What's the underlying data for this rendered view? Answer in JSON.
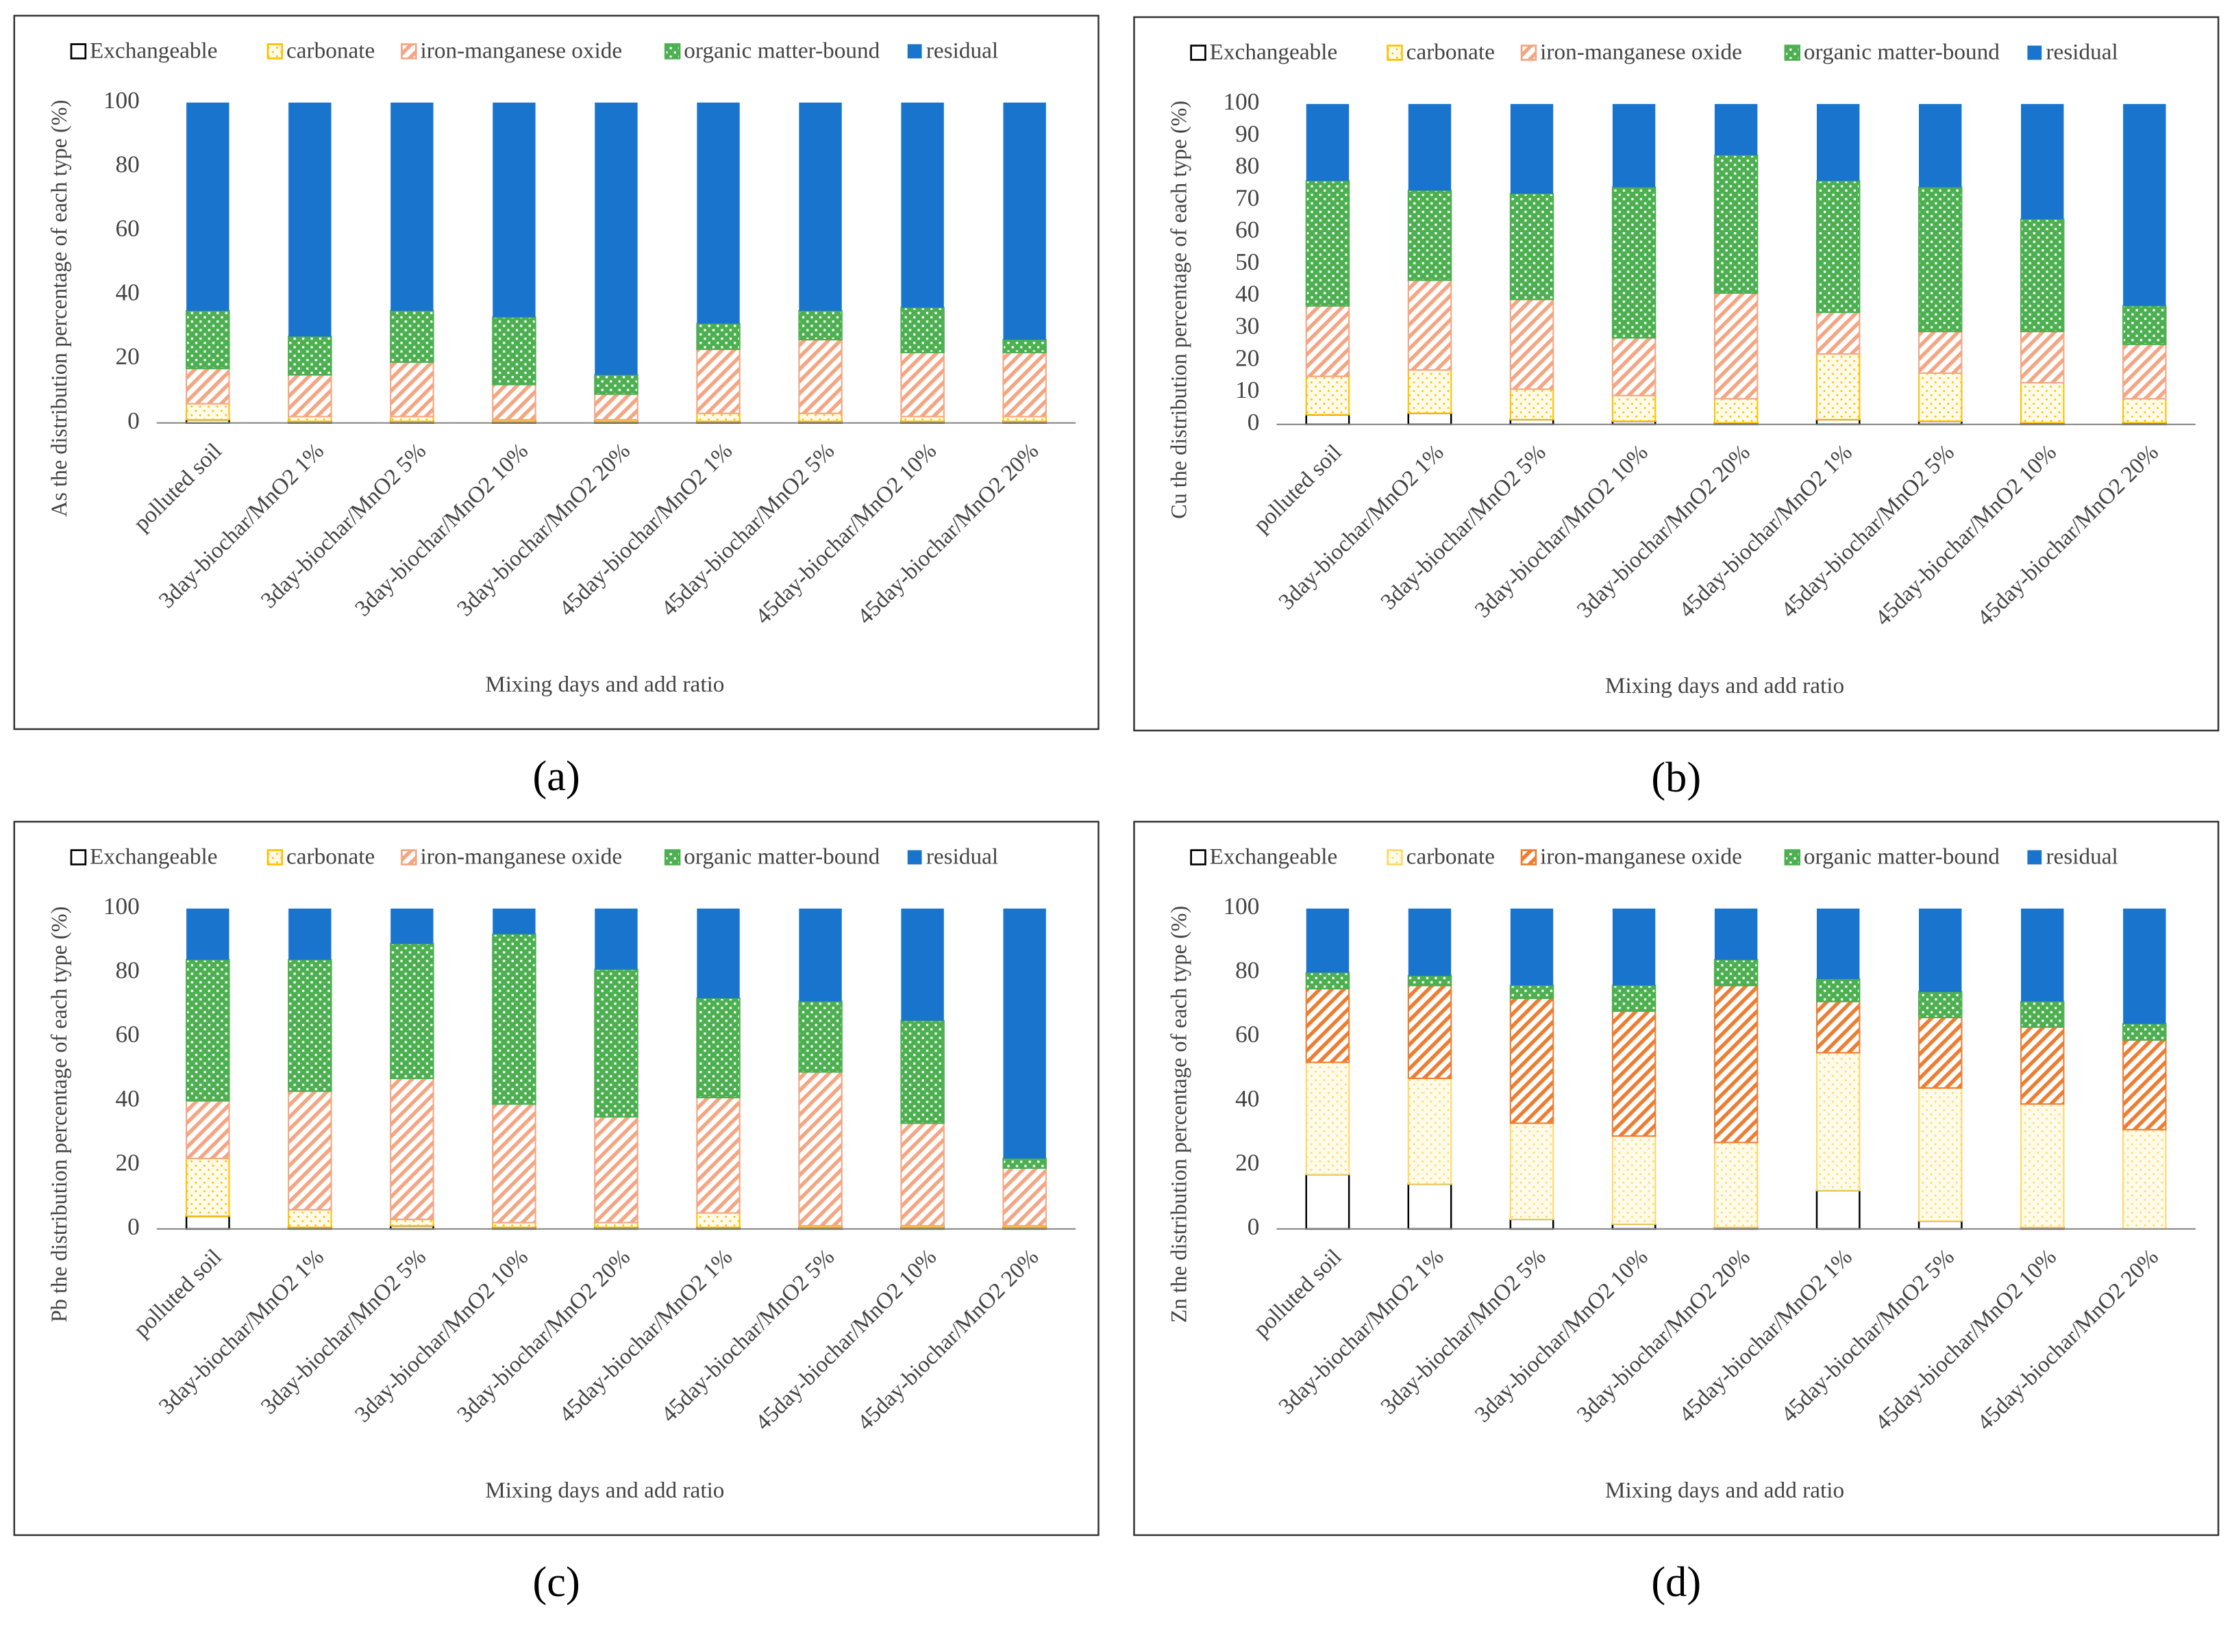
{
  "chart_data": [
    {
      "type": "bar",
      "stacked": true,
      "panel_label": "(a)",
      "ylabel": "As the distribution percentage of each type (%)",
      "xlabel": "Mixing days and add ratio",
      "categories": [
        "polluted soil",
        "3day-biochar/MnO2  1%",
        "3day-biochar/MnO2  5%",
        "3day-biochar/MnO2  10%",
        "3day-biochar/MnO2 20%",
        "45day-biochar/MnO2 1%",
        "45day-biochar/MnO2  5%",
        "45day-biochar/MnO2  10%",
        "45day-biochar/MnO2  20%"
      ],
      "ylim": [
        0,
        100
      ],
      "yticks": [
        0,
        20,
        40,
        60,
        80,
        100
      ],
      "grid": false,
      "series": [
        {
          "name": "Exchangeable",
          "color": "#000000",
          "values": [
            1,
            0.5,
            0.5,
            0.5,
            0.5,
            0.5,
            0.5,
            0.5,
            0.5
          ]
        },
        {
          "name": "carbonate",
          "color": "#ffc000",
          "values": [
            5,
            1.5,
            1.5,
            0.5,
            0.5,
            2.5,
            2.5,
            1.5,
            1.5
          ]
        },
        {
          "name": "iron-manganese oxide",
          "color": "#f4a582",
          "values": [
            11,
            13,
            17,
            11,
            8,
            20,
            23,
            20,
            20
          ]
        },
        {
          "name": "organic matter-bound",
          "color": "#4caf50",
          "values": [
            18,
            12,
            16,
            21,
            6,
            8,
            9,
            14,
            4
          ]
        },
        {
          "name": "residual",
          "color": "#1874cd",
          "values": [
            65,
            73,
            65,
            67,
            85,
            69,
            65,
            64,
            74
          ]
        }
      ]
    },
    {
      "type": "bar",
      "stacked": true,
      "panel_label": "(b)",
      "ylabel": "Cu the distribution percentage of each type (%)",
      "xlabel": "Mixing days and add ratio",
      "categories": [
        "polluted soil",
        "3day-biochar/MnO2  1%",
        "3day-biochar/MnO2  5%",
        "3day-biochar/MnO2  10%",
        "3day-biochar/MnO2  20%",
        "45day-biochar/MnO2  1%",
        "45day-biochar/MnO2  5%",
        "45day-biochar/MnO2  10%",
        "45day-biochar/MnO2  20%"
      ],
      "ylim": [
        0,
        100
      ],
      "yticks": [
        0,
        10,
        20,
        30,
        40,
        50,
        60,
        70,
        80,
        90,
        100
      ],
      "grid": false,
      "series": [
        {
          "name": "Exchangeable",
          "color": "#000000",
          "values": [
            3,
            3.5,
            1.5,
            1,
            0.5,
            1.5,
            1,
            0.5,
            0.5
          ]
        },
        {
          "name": "carbonate",
          "color": "#ffc000",
          "values": [
            12,
            13.5,
            9.5,
            8,
            7.5,
            20.5,
            15,
            12.5,
            7.5
          ]
        },
        {
          "name": "iron-manganese oxide",
          "color": "#f4a582",
          "values": [
            22,
            28,
            28,
            18,
            33,
            13,
            13,
            16,
            17
          ]
        },
        {
          "name": "organic matter-bound",
          "color": "#4caf50",
          "values": [
            39,
            28,
            33,
            47,
            43,
            41,
            45,
            35,
            12
          ]
        },
        {
          "name": "residual",
          "color": "#1874cd",
          "values": [
            24,
            27,
            28,
            26,
            16,
            24,
            26,
            36,
            63
          ]
        }
      ]
    },
    {
      "type": "bar",
      "stacked": true,
      "panel_label": "(c)",
      "ylabel": "Pb the distribution percentage of each type (%)",
      "xlabel": "Mixing days and add ratio",
      "categories": [
        "polluted soil",
        "3day-biochar/MnO2  1%",
        "3day-biochar/MnO2  5%",
        "3day-biochar/MnO2  10%",
        "3day-biochar/MnO2  20%",
        "45day-biochar/MnO2  1%",
        "45day-biochar/MnO2  5%",
        "45day-biochar/MnO2  10%",
        "45day-biochar/MnO2  20%"
      ],
      "ylim": [
        0,
        100
      ],
      "yticks": [
        0,
        20,
        40,
        60,
        80,
        100
      ],
      "grid": false,
      "series": [
        {
          "name": "Exchangeable",
          "color": "#000000",
          "values": [
            4,
            0.5,
            1,
            0.5,
            0.5,
            0.5,
            0.5,
            0.5,
            0.5
          ]
        },
        {
          "name": "carbonate",
          "color": "#ffc000",
          "values": [
            18,
            5.5,
            2,
            1.5,
            1.5,
            4.5,
            0.5,
            0.5,
            0.5
          ]
        },
        {
          "name": "iron-manganese oxide",
          "color": "#f4a582",
          "values": [
            18,
            37,
            44,
            37,
            33,
            36,
            48,
            32,
            18
          ]
        },
        {
          "name": "organic matter-bound",
          "color": "#4caf50",
          "values": [
            44,
            41,
            42,
            53,
            46,
            31,
            22,
            32,
            3
          ]
        },
        {
          "name": "residual",
          "color": "#1874cd",
          "values": [
            16,
            16,
            11,
            8,
            19,
            28,
            29,
            35,
            78
          ]
        }
      ]
    },
    {
      "type": "bar",
      "stacked": true,
      "panel_label": "(d)",
      "ylabel": "Zn the distribution percentage of each type (%)",
      "xlabel": "Mixing days and add ratio",
      "categories": [
        "polluted soil",
        "3day-biochar/MnO2  1%",
        "3day-biochar/MnO2  5%",
        "3day-biochar/MnO2  10%",
        "3day-biochar/MnO2  20%",
        "45day-biochar/MnO2  1%",
        "45day-biochar/MnO2  5%",
        "45day-biochar/MnO2  10%",
        "45day-biochar/MnO2  20%"
      ],
      "ylim": [
        0,
        100
      ],
      "yticks": [
        0,
        20,
        40,
        60,
        80,
        100
      ],
      "grid": false,
      "series": [
        {
          "name": "Exchangeable",
          "color": "#000000",
          "values": [
            17,
            14,
            3,
            1.5,
            0.5,
            12,
            2.5,
            0.5,
            0
          ]
        },
        {
          "name": "carbonate",
          "color": "#ffd966",
          "values": [
            35,
            33,
            30,
            27.5,
            26.5,
            43,
            41.5,
            38.5,
            31
          ]
        },
        {
          "name": "iron-manganese oxide",
          "color": "#ed7d31",
          "values": [
            23,
            29,
            39,
            39,
            49,
            16,
            22,
            24,
            28
          ]
        },
        {
          "name": "organic matter-bound",
          "color": "#4caf50",
          "values": [
            5,
            3,
            4,
            8,
            8,
            7,
            8,
            8,
            5
          ]
        },
        {
          "name": "residual",
          "color": "#1874cd",
          "values": [
            20,
            21,
            24,
            24,
            16,
            22,
            26,
            29,
            36
          ]
        }
      ]
    }
  ]
}
